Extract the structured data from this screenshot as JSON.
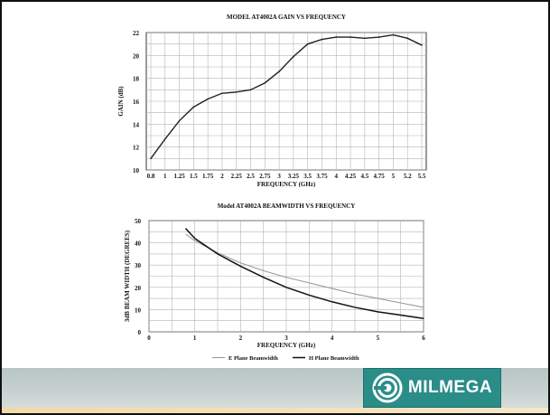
{
  "chart_data": [
    {
      "type": "line",
      "title": "MODEL AT4002A GAIN VS FREQUENCY",
      "xlabel": "FREQUENCY (GHz)",
      "ylabel": "GAIN (dB)",
      "ylim": [
        10,
        22
      ],
      "yticks": [
        "10",
        "12",
        "14",
        "16",
        "18",
        "20",
        "22"
      ],
      "categories": [
        "0.8",
        "1",
        "1.25",
        "1.5",
        "1.75",
        "2",
        "2.25",
        "2.5",
        "2.75",
        "3",
        "3.25",
        "3.5",
        "3.75",
        "4",
        "4.25",
        "4.5",
        "4.75",
        "5",
        "5.2",
        "5.5"
      ],
      "grid": true,
      "series": [
        {
          "values": [
            11.0,
            12.7,
            14.3,
            15.5,
            16.2,
            16.7,
            16.8,
            17.0,
            17.6,
            18.6,
            19.9,
            21.0,
            21.4,
            21.6,
            21.6,
            21.5,
            21.6,
            21.8,
            21.5,
            20.9
          ]
        }
      ]
    },
    {
      "type": "line",
      "title": "Model AT4002A BEAMWIDTH VS FREQUENCY",
      "xlabel": "FREQUENCY (GHz)",
      "ylabel": "3dB BEAM WIDTH (DEGREES)",
      "xlim": [
        0,
        6
      ],
      "ylim": [
        0,
        50
      ],
      "xticks": [
        "0",
        "1",
        "2",
        "3",
        "4",
        "5",
        "6"
      ],
      "yticks": [
        "0",
        "10",
        "20",
        "30",
        "40",
        "50"
      ],
      "grid": true,
      "legend": "bottom",
      "series": [
        {
          "name": "E Plane Beamwidth",
          "color": "#9a9a9a",
          "x": [
            0.8,
            1.0,
            1.5,
            2.0,
            2.5,
            3.0,
            3.5,
            4.0,
            4.5,
            5.0,
            5.5,
            6.0
          ],
          "y": [
            44.0,
            41.0,
            35.5,
            31.0,
            27.5,
            24.5,
            22.0,
            19.5,
            17.0,
            15.0,
            13.0,
            11.0
          ]
        },
        {
          "name": "H Plane Beamwidth",
          "color": "#111111",
          "x": [
            0.8,
            1.0,
            1.5,
            2.0,
            2.5,
            3.0,
            3.5,
            4.0,
            4.5,
            5.0,
            5.5,
            6.0
          ],
          "y": [
            46.5,
            42.0,
            35.0,
            29.5,
            24.5,
            20.0,
            16.5,
            13.5,
            11.0,
            9.0,
            7.5,
            6.0
          ]
        }
      ]
    }
  ],
  "logo": {
    "text": "MILMEGA",
    "color": "#2a8d88"
  }
}
